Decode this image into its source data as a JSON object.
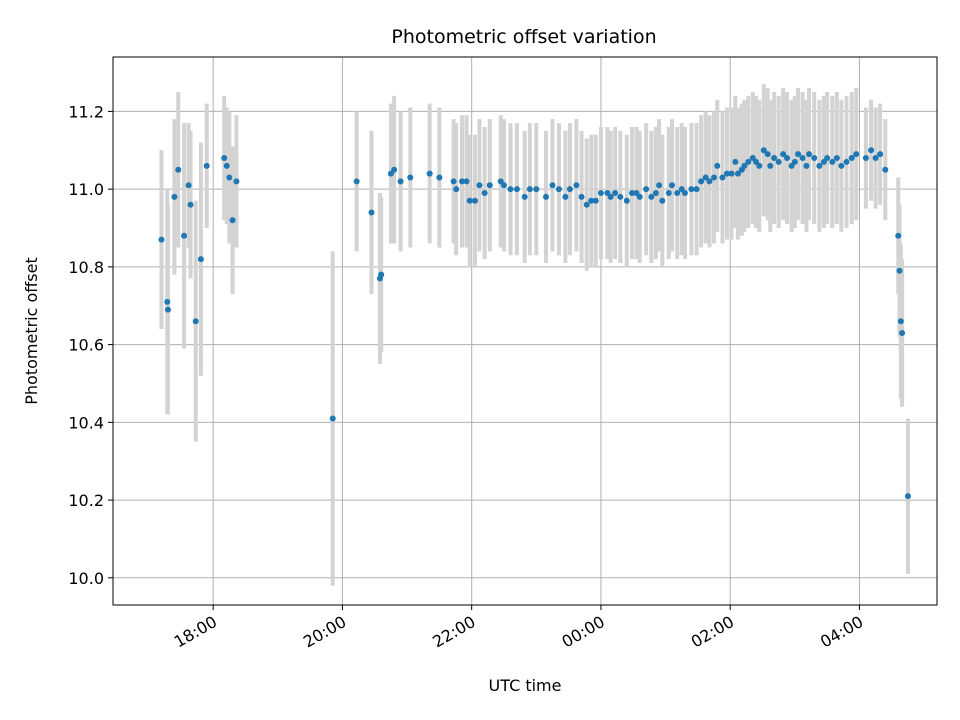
{
  "chart_data": {
    "type": "scatter",
    "title": "Photometric offset variation",
    "xlabel": "UTC time",
    "ylabel": "Photometric offset",
    "x_unit": "hours since 17:00 UTC",
    "xlim": [
      -0.55,
      12.2
    ],
    "ylim": [
      9.93,
      11.34
    ],
    "grid": true,
    "legend": "none",
    "xticks": [
      {
        "value": 1,
        "label": "18:00"
      },
      {
        "value": 3,
        "label": "20:00"
      },
      {
        "value": 5,
        "label": "22:00"
      },
      {
        "value": 7,
        "label": "00:00"
      },
      {
        "value": 9,
        "label": "02:00"
      },
      {
        "value": 11,
        "label": "04:00"
      }
    ],
    "yticks": [
      {
        "value": 10.0,
        "label": "10.0"
      },
      {
        "value": 10.2,
        "label": "10.2"
      },
      {
        "value": 10.4,
        "label": "10.4"
      },
      {
        "value": 10.6,
        "label": "10.6"
      },
      {
        "value": 10.8,
        "label": "10.8"
      },
      {
        "value": 11.0,
        "label": "11.0"
      },
      {
        "value": 11.2,
        "label": "11.2"
      }
    ],
    "marker_color": "#1f77b4",
    "errorbar_color": "#d3d3d3",
    "grid_color": "#b0b0b0",
    "points": [
      [
        0.2,
        10.87,
        0.23
      ],
      [
        0.29,
        10.71,
        0.29
      ],
      [
        0.3,
        10.69,
        0.27
      ],
      [
        0.4,
        10.98,
        0.2
      ],
      [
        0.46,
        11.05,
        0.2
      ],
      [
        0.55,
        10.88,
        0.29
      ],
      [
        0.62,
        11.01,
        0.16
      ],
      [
        0.65,
        10.96,
        0.19
      ],
      [
        0.73,
        10.66,
        0.31
      ],
      [
        0.81,
        10.82,
        0.3
      ],
      [
        0.9,
        11.06,
        0.16
      ],
      [
        1.17,
        11.08,
        0.16
      ],
      [
        1.21,
        11.06,
        0.15
      ],
      [
        1.25,
        11.03,
        0.17
      ],
      [
        1.3,
        10.92,
        0.19
      ],
      [
        1.36,
        11.02,
        0.17
      ],
      [
        2.85,
        10.41,
        0.43
      ],
      [
        3.22,
        11.02,
        0.18
      ],
      [
        3.45,
        10.94,
        0.21
      ],
      [
        3.58,
        10.77,
        0.22
      ],
      [
        3.6,
        10.78,
        0.2
      ],
      [
        3.75,
        11.04,
        0.18
      ],
      [
        3.8,
        11.05,
        0.19
      ],
      [
        3.9,
        11.02,
        0.18
      ],
      [
        4.05,
        11.03,
        0.18
      ],
      [
        4.35,
        11.04,
        0.18
      ],
      [
        4.5,
        11.03,
        0.18
      ],
      [
        4.72,
        11.02,
        0.16
      ],
      [
        4.76,
        11.0,
        0.17
      ],
      [
        4.85,
        11.02,
        0.17
      ],
      [
        4.92,
        11.02,
        0.17
      ],
      [
        4.97,
        10.97,
        0.17
      ],
      [
        5.05,
        10.97,
        0.17
      ],
      [
        5.12,
        11.01,
        0.17
      ],
      [
        5.2,
        10.99,
        0.17
      ],
      [
        5.28,
        11.01,
        0.17
      ],
      [
        5.45,
        11.02,
        0.17
      ],
      [
        5.5,
        11.01,
        0.17
      ],
      [
        5.6,
        11.0,
        0.17
      ],
      [
        5.7,
        11.0,
        0.17
      ],
      [
        5.82,
        10.98,
        0.17
      ],
      [
        5.9,
        11.0,
        0.17
      ],
      [
        6.0,
        11.0,
        0.17
      ],
      [
        6.15,
        10.98,
        0.17
      ],
      [
        6.25,
        11.01,
        0.17
      ],
      [
        6.35,
        11.0,
        0.17
      ],
      [
        6.45,
        10.98,
        0.17
      ],
      [
        6.52,
        11.0,
        0.17
      ],
      [
        6.62,
        11.01,
        0.17
      ],
      [
        6.7,
        10.98,
        0.17
      ],
      [
        6.78,
        10.96,
        0.17
      ],
      [
        6.85,
        10.97,
        0.17
      ],
      [
        6.92,
        10.97,
        0.17
      ],
      [
        7.0,
        10.99,
        0.17
      ],
      [
        7.1,
        10.99,
        0.17
      ],
      [
        7.15,
        10.98,
        0.17
      ],
      [
        7.22,
        10.99,
        0.17
      ],
      [
        7.3,
        10.98,
        0.17
      ],
      [
        7.4,
        10.97,
        0.17
      ],
      [
        7.48,
        10.99,
        0.17
      ],
      [
        7.55,
        10.99,
        0.17
      ],
      [
        7.6,
        10.98,
        0.17
      ],
      [
        7.7,
        11.0,
        0.17
      ],
      [
        7.78,
        10.98,
        0.17
      ],
      [
        7.85,
        10.99,
        0.17
      ],
      [
        7.9,
        11.01,
        0.17
      ],
      [
        7.95,
        10.97,
        0.17
      ],
      [
        8.05,
        10.99,
        0.17
      ],
      [
        8.1,
        11.01,
        0.17
      ],
      [
        8.18,
        10.99,
        0.17
      ],
      [
        8.25,
        11.0,
        0.17
      ],
      [
        8.3,
        10.99,
        0.17
      ],
      [
        8.4,
        11.0,
        0.17
      ],
      [
        8.48,
        11.0,
        0.17
      ],
      [
        8.55,
        11.02,
        0.17
      ],
      [
        8.62,
        11.03,
        0.17
      ],
      [
        8.68,
        11.02,
        0.17
      ],
      [
        8.75,
        11.03,
        0.17
      ],
      [
        8.8,
        11.06,
        0.17
      ],
      [
        8.88,
        11.03,
        0.17
      ],
      [
        8.95,
        11.04,
        0.17
      ],
      [
        9.02,
        11.04,
        0.17
      ],
      [
        9.08,
        11.07,
        0.17
      ],
      [
        9.12,
        11.04,
        0.17
      ],
      [
        9.18,
        11.05,
        0.17
      ],
      [
        9.22,
        11.06,
        0.17
      ],
      [
        9.28,
        11.07,
        0.17
      ],
      [
        9.35,
        11.08,
        0.17
      ],
      [
        9.4,
        11.07,
        0.17
      ],
      [
        9.45,
        11.06,
        0.17
      ],
      [
        9.52,
        11.1,
        0.17
      ],
      [
        9.58,
        11.09,
        0.17
      ],
      [
        9.62,
        11.06,
        0.17
      ],
      [
        9.68,
        11.08,
        0.17
      ],
      [
        9.75,
        11.07,
        0.17
      ],
      [
        9.82,
        11.09,
        0.17
      ],
      [
        9.88,
        11.08,
        0.17
      ],
      [
        9.95,
        11.06,
        0.17
      ],
      [
        10.0,
        11.07,
        0.17
      ],
      [
        10.05,
        11.09,
        0.17
      ],
      [
        10.12,
        11.08,
        0.17
      ],
      [
        10.18,
        11.06,
        0.17
      ],
      [
        10.22,
        11.09,
        0.17
      ],
      [
        10.3,
        11.08,
        0.17
      ],
      [
        10.38,
        11.06,
        0.17
      ],
      [
        10.45,
        11.07,
        0.17
      ],
      [
        10.5,
        11.08,
        0.17
      ],
      [
        10.58,
        11.07,
        0.17
      ],
      [
        10.65,
        11.08,
        0.17
      ],
      [
        10.72,
        11.06,
        0.17
      ],
      [
        10.8,
        11.07,
        0.17
      ],
      [
        10.88,
        11.08,
        0.17
      ],
      [
        10.95,
        11.09,
        0.17
      ],
      [
        11.1,
        11.08,
        0.13
      ],
      [
        11.18,
        11.1,
        0.13
      ],
      [
        11.25,
        11.08,
        0.13
      ],
      [
        11.32,
        11.09,
        0.13
      ],
      [
        11.4,
        11.05,
        0.13
      ],
      [
        11.6,
        10.88,
        0.15
      ],
      [
        11.62,
        10.79,
        0.17
      ],
      [
        11.64,
        10.66,
        0.2
      ],
      [
        11.66,
        10.63,
        0.19
      ],
      [
        11.75,
        10.21,
        0.2
      ]
    ]
  }
}
